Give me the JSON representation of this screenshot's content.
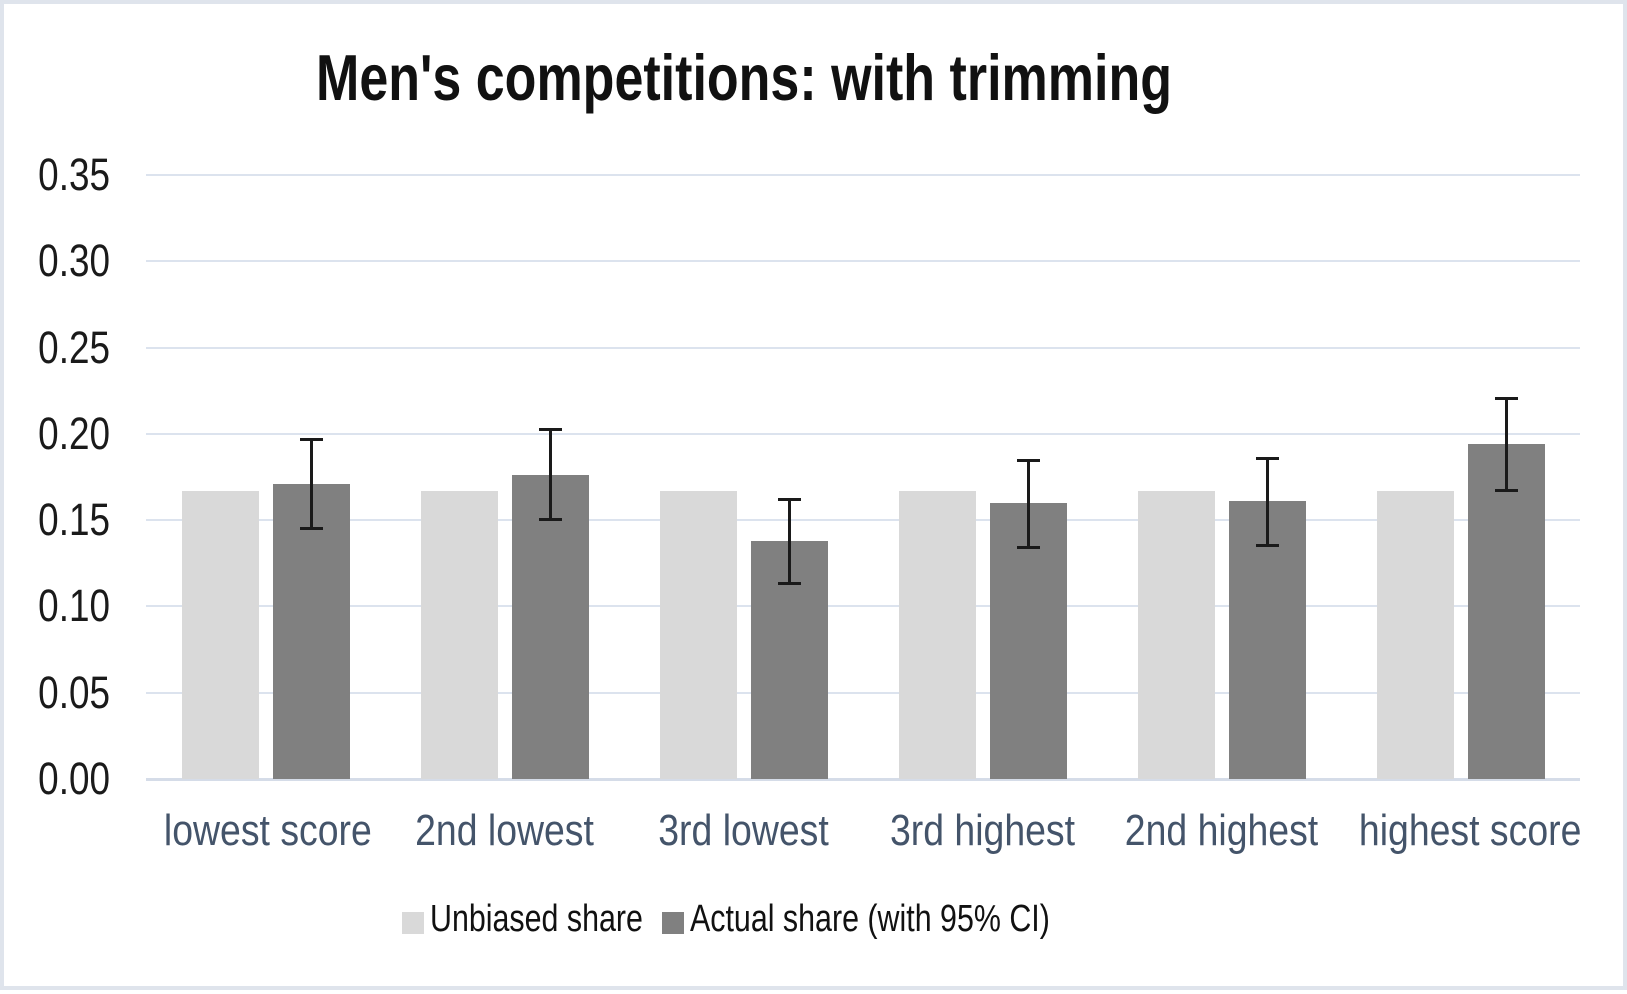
{
  "title": "Men's competitions: with trimming",
  "legend": {
    "items": [
      {
        "label": "Unbiased share",
        "color": "#d9d9d9"
      },
      {
        "label": "Actual share (with 95% CI)",
        "color": "#808080"
      }
    ],
    "position": "bottom"
  },
  "style": {
    "unbiased_bar_color": "#d9d9d9",
    "actual_bar_color": "#808080",
    "gridline_color": "#dce3ee",
    "axis_line_color": "#d5dce8",
    "category_label_color": "#44546a",
    "error_bar_color": "#1a1a1a",
    "title_color": "#111111",
    "background_color": "#ffffff"
  },
  "chart_data": {
    "type": "bar",
    "title": "Men's competitions: with trimming",
    "xlabel": "",
    "ylabel": "",
    "categories": [
      "lowest score",
      "2nd lowest",
      "3rd lowest",
      "3rd highest",
      "2nd highest",
      "highest score"
    ],
    "yticks": [
      "0.00",
      "0.05",
      "0.10",
      "0.15",
      "0.20",
      "0.25",
      "0.30",
      "0.35"
    ],
    "ylim": [
      0,
      0.35
    ],
    "ytick_step": 0.05,
    "grid": true,
    "legend_position": "bottom",
    "series": [
      {
        "name": "Unbiased share",
        "color": "#d9d9d9",
        "values": [
          0.167,
          0.167,
          0.167,
          0.167,
          0.167,
          0.167
        ]
      },
      {
        "name": "Actual share (with 95% CI)",
        "color": "#808080",
        "values": [
          0.171,
          0.176,
          0.138,
          0.16,
          0.161,
          0.194
        ],
        "ci_low": [
          0.145,
          0.15,
          0.113,
          0.134,
          0.135,
          0.167
        ],
        "ci_high": [
          0.197,
          0.203,
          0.162,
          0.185,
          0.186,
          0.221
        ]
      }
    ]
  }
}
